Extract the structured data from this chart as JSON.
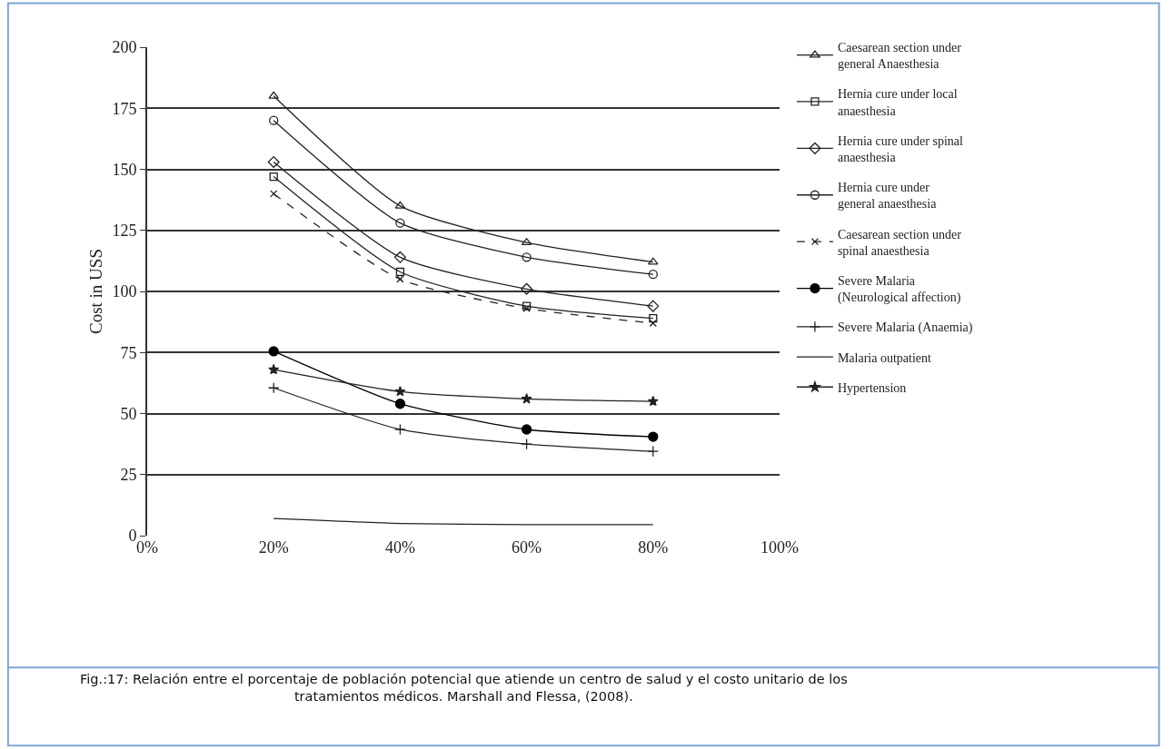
{
  "chart_data": {
    "type": "line",
    "ylabel": "Cost in USS",
    "x": [
      20,
      40,
      60,
      80
    ],
    "series": [
      {
        "name": "Caesarean section under general Anaesthesia",
        "color": "#222222",
        "marker": "triangle",
        "values": [
          180,
          135,
          120,
          112
        ]
      },
      {
        "name": "Hernia cure under local anaesthesia",
        "color": "#222222",
        "marker": "square",
        "values": [
          147,
          108,
          94,
          89
        ]
      },
      {
        "name": "Hernia cure under spinal anaesthesia",
        "color": "#222222",
        "marker": "diamond",
        "values": [
          153,
          114,
          101,
          94
        ]
      },
      {
        "name": "Hernia cure under general anaesthesia",
        "color": "#222222",
        "marker": "circle",
        "values": [
          170,
          128,
          114,
          107
        ]
      },
      {
        "name": "Caesarean section under spinal anaesthesia",
        "color": "#222222",
        "marker": "cross",
        "line_style": "dashed",
        "values": [
          140,
          105,
          93,
          87
        ]
      },
      {
        "name": "Severe Malaria (Neurological affection)",
        "color": "#000000",
        "marker": "circle_filled",
        "values": [
          75.5,
          54,
          43.5,
          40.5
        ]
      },
      {
        "name": "Severe Malaria (Anaemia)",
        "color": "#222222",
        "marker": "plus",
        "values": [
          60.5,
          43.5,
          37.5,
          34.5
        ]
      },
      {
        "name": "Malaria outpatient",
        "color": "#222222",
        "marker": "none",
        "values": [
          7,
          5,
          4.5,
          4.5
        ]
      },
      {
        "name": "Hypertension",
        "color": "#222222",
        "marker": "star",
        "values": [
          68,
          59,
          56,
          55
        ]
      }
    ],
    "xlim": [
      0,
      100
    ],
    "xticks": [
      {
        "value": 0,
        "label": "0%"
      },
      {
        "value": 20,
        "label": "20%"
      },
      {
        "value": 40,
        "label": "40%"
      },
      {
        "value": 60,
        "label": "60%"
      },
      {
        "value": 80,
        "label": "80%"
      },
      {
        "value": 100,
        "label": "100%"
      }
    ],
    "ylim": [
      0,
      200
    ],
    "yticks": [
      0,
      25,
      50,
      75,
      100,
      125,
      150,
      175,
      200
    ],
    "grid": "y",
    "legend": "right",
    "line_style": "solid",
    "annotations": [
      "Fig.:17: Relación entre el porcentaje de población potencial que atiende un centro de salud y el costo unitario de los tratamientos médicos. Marshall and Flessa, (2008)."
    ]
  }
}
